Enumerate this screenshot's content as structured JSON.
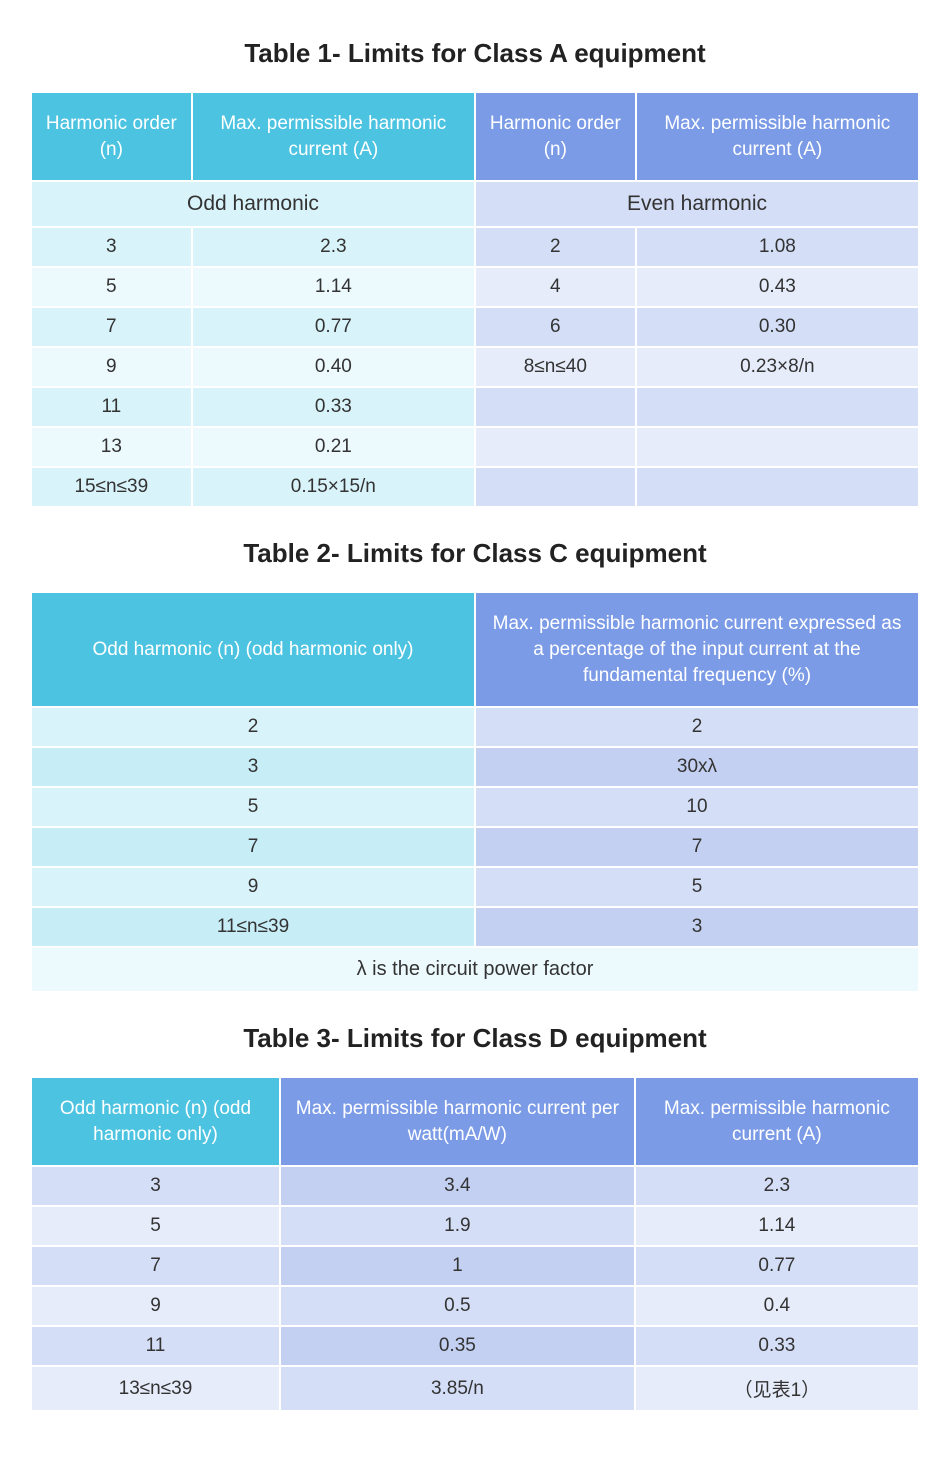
{
  "table1": {
    "title": "Table 1- Limits for Class A equipment",
    "headers": {
      "h1": "Harmonic order (n)",
      "h2": "Max. permissible harmonic current (A)",
      "h3": "Harmonic order (n)",
      "h4": "Max. permissible harmonic current (A)"
    },
    "subheaders": {
      "odd": "Odd harmonic",
      "even": "Even harmonic"
    },
    "rows": [
      {
        "o_n": "3",
        "o_a": "2.3",
        "e_n": "2",
        "e_a": "1.08"
      },
      {
        "o_n": "5",
        "o_a": "1.14",
        "e_n": "4",
        "e_a": "0.43"
      },
      {
        "o_n": "7",
        "o_a": "0.77",
        "e_n": "6",
        "e_a": "0.30"
      },
      {
        "o_n": "9",
        "o_a": "0.40",
        "e_n": "8≤n≤40",
        "e_a": "0.23×8/n"
      },
      {
        "o_n": "11",
        "o_a": "0.33",
        "e_n": "",
        "e_a": ""
      },
      {
        "o_n": "13",
        "o_a": "0.21",
        "e_n": "",
        "e_a": ""
      },
      {
        "o_n": "15≤n≤39",
        "o_a": "0.15×15/n",
        "e_n": "",
        "e_a": ""
      }
    ]
  },
  "table2": {
    "title": "Table 2- Limits for Class C equipment",
    "headers": {
      "h1": "Odd harmonic (n) (odd harmonic only)",
      "h2": "Max. permissible harmonic current expressed as a percentage of the input current at the fundamental frequency (%)"
    },
    "rows": [
      {
        "n": "2",
        "p": "2"
      },
      {
        "n": "3",
        "p": "30xλ"
      },
      {
        "n": "5",
        "p": "10"
      },
      {
        "n": "7",
        "p": "7"
      },
      {
        "n": "9",
        "p": "5"
      },
      {
        "n": "11≤n≤39",
        "p": "3"
      }
    ],
    "footnote": "λ is the circuit power factor"
  },
  "table3": {
    "title": "Table 3- Limits for Class D equipment",
    "headers": {
      "h1": "Odd harmonic (n) (odd harmonic only)",
      "h2": "Max. permissible harmonic current per watt(mA/W)",
      "h3": "Max. permissible harmonic current (A)"
    },
    "rows": [
      {
        "n": "3",
        "mw": "3.4",
        "a": "2.3"
      },
      {
        "n": "5",
        "mw": "1.9",
        "a": "1.14"
      },
      {
        "n": "7",
        "mw": "1",
        "a": "0.77"
      },
      {
        "n": "9",
        "mw": "0.5",
        "a": "0.4"
      },
      {
        "n": "11",
        "mw": "0.35",
        "a": "0.33"
      },
      {
        "n": "13≤n≤39",
        "mw": "3.85/n",
        "a": "（见表1）"
      }
    ]
  },
  "colors": {
    "header_cyan": "#4cc3e0",
    "header_blue": "#7b9be6",
    "cyan_light": "#d9f3fa",
    "cyan_lighter": "#ecf9fd",
    "blue_light": "#d4def6",
    "blue_lighter": "#e6ecfa",
    "blue_mid": "#c3d0f1"
  }
}
